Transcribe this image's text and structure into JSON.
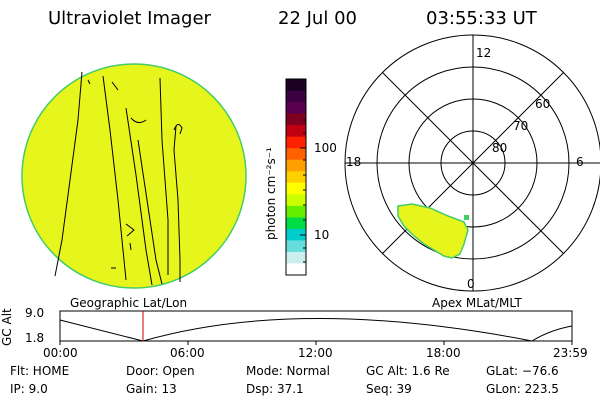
{
  "header": {
    "title": "Ultraviolet Imager",
    "date": "22 Jul 00",
    "time": "03:55:33 UT"
  },
  "colorbar": {
    "unit": "photon cm⁻²s⁻¹",
    "ticks": [
      "100",
      "10"
    ],
    "colors": [
      "#1a0022",
      "#3a0040",
      "#5a0050",
      "#800020",
      "#c00010",
      "#ff2000",
      "#ff6000",
      "#ffa000",
      "#ffd000",
      "#ffff00",
      "#ccff00",
      "#66ee00",
      "#00dd44",
      "#00cccc",
      "#66dddd",
      "#cceeee",
      "#ffffff"
    ]
  },
  "left_panel": {
    "label": "Geographic Lat/Lon",
    "fill_color": "#e6f51c"
  },
  "right_panel": {
    "label": "Apex MLat/MLT",
    "lat_labels": [
      "80",
      "70",
      "60"
    ],
    "mlt_labels": {
      "top": "12",
      "left": "18",
      "right": "6",
      "bottom": "0"
    },
    "aurora_color": "#e6f51c"
  },
  "altitude_plot": {
    "ylabel": "GC Alt",
    "yticks": [
      "9.0",
      "1.8"
    ],
    "xticks": [
      "00:00",
      "06:00",
      "12:00",
      "18:00",
      "23:59"
    ],
    "marker_color": "#cc0000"
  },
  "info": {
    "flt": "Flt: HOME",
    "ip": "IP:  9.0",
    "door": "Door: Open",
    "gain": "Gain: 13",
    "mode": "Mode: Normal",
    "dsp": "Dsp:   37.1",
    "gcalt": "GC Alt: 1.6 Re",
    "seq": "Seq: 39",
    "glat": "GLat: −76.6",
    "glon": "GLon: 223.5"
  }
}
